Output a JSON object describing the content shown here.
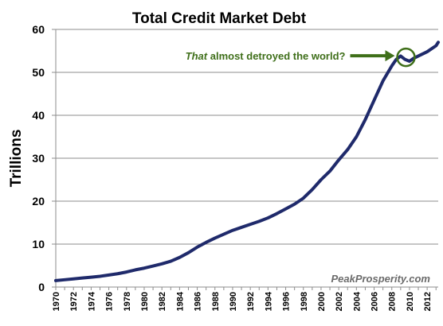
{
  "chart_data": {
    "type": "line",
    "title": "Total Credit Market Debt",
    "xlabel": "",
    "ylabel": "Trillions",
    "ylim": [
      0,
      60
    ],
    "yticks": [
      "0",
      "10",
      "20",
      "30",
      "40",
      "50",
      "60"
    ],
    "xlim": [
      1970,
      2013.25
    ],
    "xticks": [
      "1970",
      "1972",
      "1974",
      "1976",
      "1978",
      "1980",
      "1982",
      "1984",
      "1986",
      "1988",
      "1990",
      "1992",
      "1994",
      "1996",
      "1998",
      "2000",
      "2002",
      "2004",
      "2006",
      "2008",
      "2010",
      "2012"
    ],
    "grid": true,
    "legend": "none",
    "line_color": "#1f2a6b",
    "series": [
      {
        "x": [
          1970,
          1971,
          1972,
          1973,
          1974,
          1975,
          1976,
          1977,
          1978,
          1979,
          1980,
          1981,
          1982,
          1983,
          1984,
          1985,
          1986,
          1987,
          1988,
          1989,
          1990,
          1991,
          1992,
          1993,
          1994,
          1995,
          1996,
          1997,
          1998,
          1999,
          2000,
          2001,
          2002,
          2003,
          2004,
          2005,
          2006,
          2007,
          2008,
          2008.5,
          2009,
          2009.5,
          2010,
          2010.5,
          2011,
          2012,
          2013,
          2013.25
        ],
        "y": [
          1.5,
          1.7,
          1.9,
          2.1,
          2.3,
          2.5,
          2.8,
          3.1,
          3.5,
          4.0,
          4.4,
          4.9,
          5.4,
          6.0,
          6.9,
          8.0,
          9.3,
          10.4,
          11.4,
          12.3,
          13.2,
          13.9,
          14.6,
          15.3,
          16.1,
          17.1,
          18.2,
          19.3,
          20.7,
          22.7,
          25.0,
          27.0,
          29.6,
          32.0,
          35.0,
          39.0,
          43.5,
          48.0,
          51.5,
          53.0,
          53.8,
          53.0,
          52.6,
          53.3,
          53.8,
          54.8,
          56.2,
          57.0
        ]
      }
    ],
    "annotations": [
      {
        "emphasis": "That",
        "text": " almost detroyed the world?",
        "x": 2009.6,
        "y": 53.5,
        "color": "#3f6f1a"
      }
    ],
    "watermark": "PeakProsperity.com"
  }
}
